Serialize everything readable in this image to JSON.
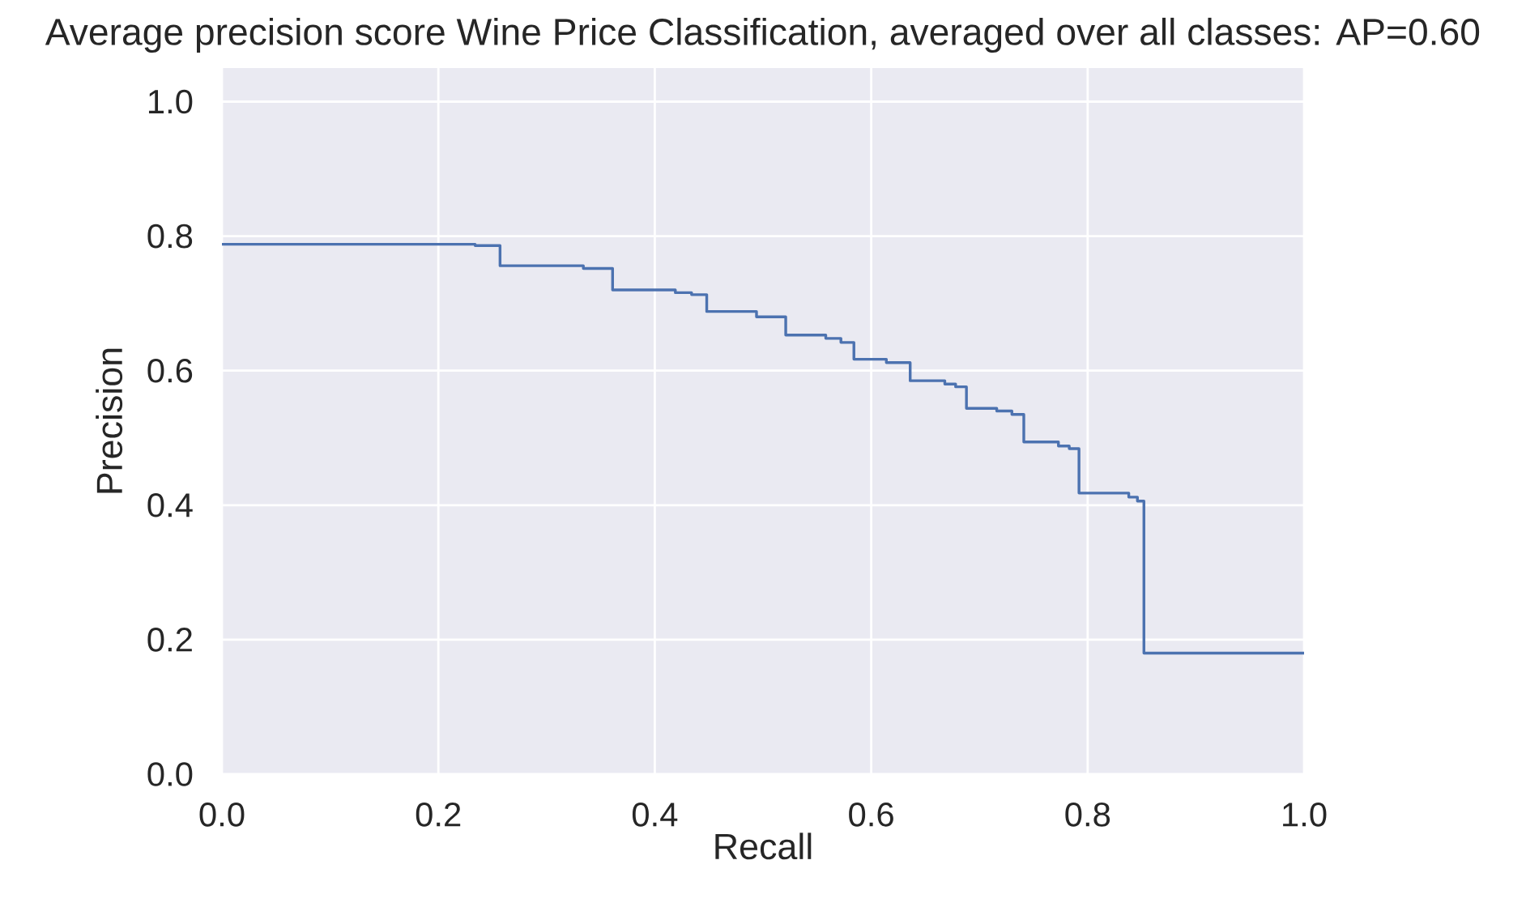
{
  "chart_data": {
    "type": "step",
    "title": "Average precision score Wine Price Classification, averaged over all classes: AP=0.60",
    "xlabel": "Recall",
    "ylabel": "Precision",
    "x": [
      0,
      0.234,
      0.257,
      0.334,
      0.361,
      0.419,
      0.434,
      0.448,
      0.494,
      0.521,
      0.558,
      0.572,
      0.584,
      0.614,
      0.636,
      0.668,
      0.678,
      0.688,
      0.716,
      0.73,
      0.741,
      0.773,
      0.783,
      0.792,
      0.838,
      0.846,
      0.852,
      1.0
    ],
    "values": [
      0.788,
      0.786,
      0.756,
      0.752,
      0.72,
      0.716,
      0.713,
      0.688,
      0.68,
      0.653,
      0.648,
      0.642,
      0.617,
      0.612,
      0.585,
      0.58,
      0.576,
      0.544,
      0.54,
      0.535,
      0.494,
      0.488,
      0.484,
      0.418,
      0.412,
      0.406,
      0.18,
      0.18
    ],
    "color": "#4c72b0",
    "xlim": [
      0,
      1
    ],
    "ylim": [
      0,
      1.05
    ],
    "xticks": [
      {
        "value": 0,
        "label": "0.0"
      },
      {
        "value": 0.2,
        "label": "0.2"
      },
      {
        "value": 0.4,
        "label": "0.4"
      },
      {
        "value": 0.6,
        "label": "0.6"
      },
      {
        "value": 0.8,
        "label": "0.8"
      },
      {
        "value": 1.0,
        "label": "1.0"
      }
    ],
    "yticks": [
      {
        "value": 0,
        "label": "0.0"
      },
      {
        "value": 0.2,
        "label": "0.2"
      },
      {
        "value": 0.4,
        "label": "0.4"
      },
      {
        "value": 0.6,
        "label": "0.6"
      },
      {
        "value": 0.8,
        "label": "0.8"
      },
      {
        "value": 1.0,
        "label": "1.0"
      }
    ],
    "grid": true
  }
}
